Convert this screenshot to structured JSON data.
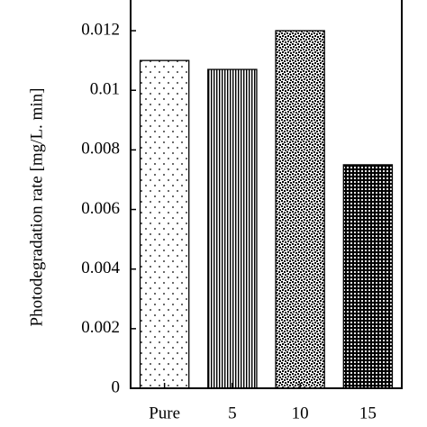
{
  "chart_data": {
    "type": "bar",
    "y_label": "Photodegradation rate [mg/L. min]",
    "categories": [
      "Pure",
      "5",
      "10",
      "15"
    ],
    "values": [
      0.011,
      0.0107,
      0.012,
      0.0075
    ],
    "ylim": [
      0,
      0.013
    ],
    "yticks": [
      0,
      0.002,
      0.004,
      0.006,
      0.008,
      0.01,
      0.012
    ],
    "color": "#000000"
  }
}
